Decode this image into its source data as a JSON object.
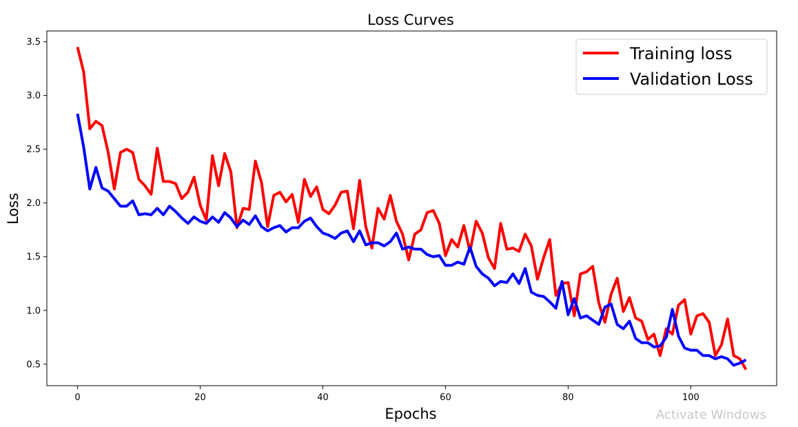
{
  "watermark": "Activate Windows",
  "chart_data": {
    "type": "line",
    "title": "Loss Curves",
    "xlabel": "Epochs",
    "ylabel": "Loss",
    "xlim": [
      -5,
      114
    ],
    "ylim": [
      0.3,
      3.6
    ],
    "xticks": [
      0,
      20,
      40,
      60,
      80,
      100
    ],
    "yticks": [
      0.5,
      1.0,
      1.5,
      2.0,
      2.5,
      3.0,
      3.5
    ],
    "grid": false,
    "legend_position": "top-right",
    "x": [
      0,
      1,
      2,
      3,
      4,
      5,
      6,
      7,
      8,
      9,
      10,
      11,
      12,
      13,
      14,
      15,
      16,
      17,
      18,
      19,
      20,
      21,
      22,
      23,
      24,
      25,
      26,
      27,
      28,
      29,
      30,
      31,
      32,
      33,
      34,
      35,
      36,
      37,
      38,
      39,
      40,
      41,
      42,
      43,
      44,
      45,
      46,
      47,
      48,
      49,
      50,
      51,
      52,
      53,
      54,
      55,
      56,
      57,
      58,
      59,
      60,
      61,
      62,
      63,
      64,
      65,
      66,
      67,
      68,
      69,
      70,
      71,
      72,
      73,
      74,
      75,
      76,
      77,
      78,
      79,
      80,
      81,
      82,
      83,
      84,
      85,
      86,
      87,
      88,
      89,
      90,
      91,
      92,
      93,
      94,
      95,
      96,
      97,
      98,
      99,
      100,
      101,
      102,
      103,
      104,
      105,
      106,
      107,
      108,
      109
    ],
    "series": [
      {
        "name": "Training loss",
        "color": "#ff0000",
        "values": [
          3.45,
          3.22,
          2.69,
          2.76,
          2.72,
          2.47,
          2.13,
          2.47,
          2.5,
          2.47,
          2.22,
          2.16,
          2.08,
          2.51,
          2.2,
          2.2,
          2.18,
          2.04,
          2.1,
          2.24,
          1.98,
          1.84,
          2.44,
          2.16,
          2.46,
          2.29,
          1.77,
          1.95,
          1.94,
          2.39,
          2.19,
          1.78,
          2.07,
          2.1,
          2.01,
          2.08,
          1.82,
          2.22,
          2.06,
          2.15,
          1.94,
          1.9,
          1.98,
          2.1,
          2.11,
          1.76,
          2.21,
          1.78,
          1.58,
          1.95,
          1.85,
          2.07,
          1.83,
          1.71,
          1.47,
          1.71,
          1.75,
          1.91,
          1.93,
          1.81,
          1.51,
          1.66,
          1.59,
          1.79,
          1.55,
          1.83,
          1.72,
          1.49,
          1.39,
          1.81,
          1.57,
          1.58,
          1.55,
          1.71,
          1.6,
          1.29,
          1.49,
          1.66,
          1.14,
          1.25,
          1.26,
          0.95,
          1.34,
          1.36,
          1.41,
          1.07,
          0.89,
          1.15,
          1.3,
          0.99,
          1.12,
          0.93,
          0.9,
          0.73,
          0.78,
          0.58,
          0.83,
          0.78,
          1.05,
          1.1,
          0.78,
          0.95,
          0.97,
          0.89,
          0.58,
          0.68,
          0.92,
          0.58,
          0.55,
          0.45
        ]
      },
      {
        "name": "Validation Loss",
        "color": "#0000ff",
        "values": [
          2.83,
          2.52,
          2.13,
          2.33,
          2.14,
          2.11,
          2.04,
          1.97,
          1.97,
          2.02,
          1.89,
          1.9,
          1.89,
          1.95,
          1.89,
          1.97,
          1.92,
          1.86,
          1.81,
          1.87,
          1.83,
          1.81,
          1.87,
          1.82,
          1.91,
          1.86,
          1.78,
          1.84,
          1.8,
          1.88,
          1.78,
          1.74,
          1.77,
          1.79,
          1.73,
          1.77,
          1.77,
          1.83,
          1.86,
          1.78,
          1.72,
          1.7,
          1.67,
          1.72,
          1.74,
          1.64,
          1.74,
          1.61,
          1.63,
          1.63,
          1.6,
          1.64,
          1.72,
          1.57,
          1.59,
          1.57,
          1.57,
          1.52,
          1.5,
          1.51,
          1.42,
          1.42,
          1.45,
          1.43,
          1.59,
          1.41,
          1.34,
          1.3,
          1.23,
          1.27,
          1.26,
          1.34,
          1.25,
          1.39,
          1.17,
          1.14,
          1.13,
          1.08,
          1.02,
          1.27,
          0.96,
          1.11,
          0.93,
          0.95,
          0.91,
          0.87,
          1.03,
          1.06,
          0.87,
          0.83,
          0.9,
          0.74,
          0.7,
          0.7,
          0.66,
          0.67,
          0.75,
          1.01,
          0.76,
          0.65,
          0.63,
          0.63,
          0.58,
          0.58,
          0.55,
          0.57,
          0.55,
          0.49,
          0.51,
          0.54
        ]
      }
    ]
  }
}
